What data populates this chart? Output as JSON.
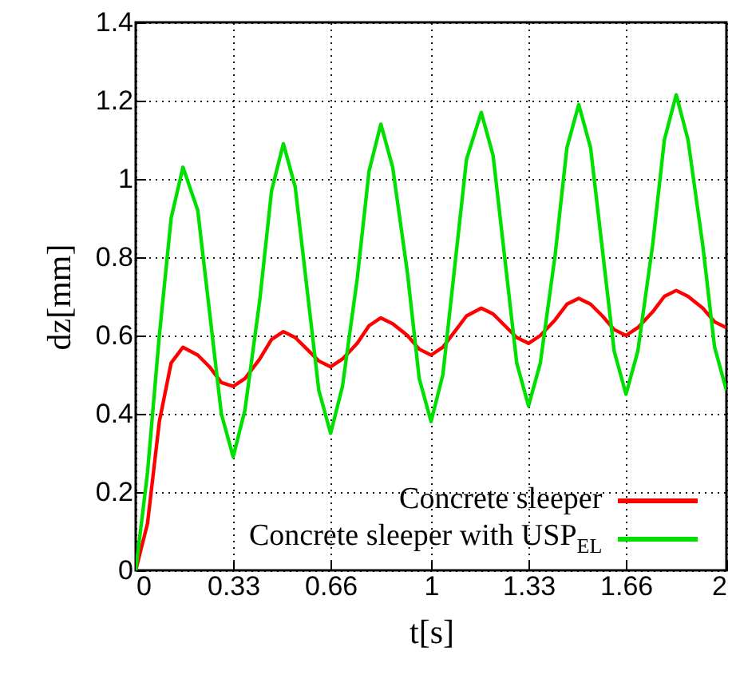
{
  "chart_data": {
    "type": "line",
    "xlabel": "t[s]",
    "ylabel": "dz[mm]",
    "x": [
      0,
      0.04,
      0.08,
      0.12,
      0.16,
      0.21,
      0.25,
      0.29,
      0.33,
      0.37,
      0.42,
      0.46,
      0.5,
      0.54,
      0.58,
      0.62,
      0.66,
      0.7,
      0.75,
      0.79,
      0.83,
      0.87,
      0.92,
      0.96,
      1.0,
      1.04,
      1.08,
      1.12,
      1.17,
      1.21,
      1.25,
      1.29,
      1.33,
      1.37,
      1.42,
      1.46,
      1.5,
      1.54,
      1.58,
      1.62,
      1.66,
      1.7,
      1.75,
      1.79,
      1.83,
      1.87,
      1.92,
      1.96,
      2.0
    ],
    "series": [
      {
        "name": "Concrete sleeper",
        "color": "#ff0000",
        "values": [
          0,
          0.12,
          0.38,
          0.53,
          0.57,
          0.55,
          0.52,
          0.48,
          0.47,
          0.49,
          0.54,
          0.59,
          0.61,
          0.595,
          0.565,
          0.535,
          0.52,
          0.54,
          0.58,
          0.625,
          0.645,
          0.63,
          0.6,
          0.565,
          0.55,
          0.57,
          0.61,
          0.65,
          0.67,
          0.655,
          0.625,
          0.595,
          0.58,
          0.6,
          0.64,
          0.68,
          0.695,
          0.68,
          0.65,
          0.615,
          0.6,
          0.62,
          0.66,
          0.7,
          0.715,
          0.7,
          0.67,
          0.635,
          0.62
        ]
      },
      {
        "name": "Concrete sleeper with USP$_{EL}$",
        "color": "#00e000",
        "values": [
          0,
          0.25,
          0.6,
          0.9,
          1.03,
          0.92,
          0.66,
          0.4,
          0.29,
          0.41,
          0.69,
          0.97,
          1.09,
          0.98,
          0.72,
          0.46,
          0.35,
          0.47,
          0.745,
          1.02,
          1.14,
          1.03,
          0.76,
          0.49,
          0.38,
          0.5,
          0.775,
          1.05,
          1.17,
          1.06,
          0.795,
          0.53,
          0.42,
          0.53,
          0.805,
          1.08,
          1.19,
          1.08,
          0.82,
          0.56,
          0.45,
          0.56,
          0.83,
          1.1,
          1.215,
          1.1,
          0.83,
          0.57,
          0.46
        ]
      }
    ],
    "xlim": [
      0,
      2
    ],
    "ylim": [
      0,
      1.4
    ],
    "xticks": [
      0,
      0.33,
      0.66,
      1,
      1.33,
      1.66,
      2
    ],
    "yticks": [
      0,
      0.2,
      0.4,
      0.6,
      0.8,
      1,
      1.2,
      1.4
    ],
    "grid": true,
    "legend": "bottom right",
    "line_style": "solid"
  }
}
